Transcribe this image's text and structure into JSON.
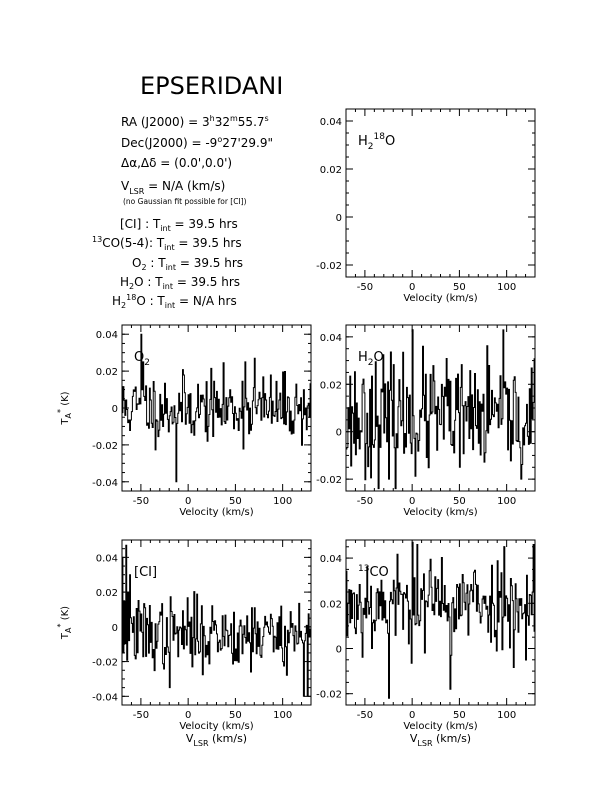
{
  "title": "EPSERIDANI",
  "info": {
    "ra": "RA (J2000) = 3h32m55.7s",
    "dec": "Dec(J2000) = -9°27'29.9\"",
    "offset": "Δα,Δδ = (0.0',0.0')",
    "vlsr": "VLSR = N/A (km/s)",
    "note": "(no Gaussian fit possible for [CI])",
    "tint": [
      {
        "line": "[CI]",
        "value": "39.5 hrs"
      },
      {
        "line": "13CO(5-4)",
        "value": "39.5 hrs"
      },
      {
        "line": "O2",
        "value": "39.5 hrs"
      },
      {
        "line": "H2O",
        "value": "39.5 hrs"
      },
      {
        "line": "H218O",
        "value": "N/A hrs"
      }
    ]
  },
  "chart_data": [
    {
      "type": "line",
      "name": "H2 18O",
      "label": "H218O",
      "xlabel": "Velocity (km/s)",
      "ylabel": "",
      "xlim": [
        -70,
        130
      ],
      "ylim": [
        -0.025,
        0.045
      ],
      "xticks": [
        -50,
        0,
        50,
        100
      ],
      "yticks": [
        -0.02,
        0,
        0.02,
        0.04
      ],
      "ytick_labels": [
        "-0.02",
        "0",
        "0.02",
        "0.04"
      ],
      "data": "none",
      "noise": {
        "sigma": 0,
        "offset": 0,
        "seed": 0
      }
    },
    {
      "type": "line",
      "name": "O2",
      "label": "O2",
      "xlabel": "Velocity (km/s)",
      "ylabel": "TA* (K)",
      "xlim": [
        -70,
        130
      ],
      "ylim": [
        -0.045,
        0.045
      ],
      "xticks": [
        -50,
        0,
        50,
        100
      ],
      "yticks": [
        -0.04,
        -0.02,
        0,
        0.02,
        0.04
      ],
      "ytick_labels": [
        "-0.04",
        "-0.02",
        "0",
        "0.02",
        "0.04"
      ],
      "noise": {
        "sigma": 0.009,
        "offset": 0.0,
        "seed": 11
      },
      "features": [
        {
          "x": -50,
          "y": 0.04
        },
        {
          "x": -48,
          "y": 0.025
        },
        {
          "x": -45,
          "y": 0.012
        },
        {
          "x": -13,
          "y": -0.04
        },
        {
          "x": 60,
          "y": 0.025
        },
        {
          "x": 70,
          "y": 0.027
        }
      ]
    },
    {
      "type": "line",
      "name": "H2O",
      "label": "H2O",
      "xlabel": "Velocity (km/s)",
      "ylabel": "",
      "xlim": [
        -70,
        130
      ],
      "ylim": [
        -0.025,
        0.045
      ],
      "xticks": [
        -50,
        0,
        50,
        100
      ],
      "yticks": [
        -0.02,
        0,
        0.02,
        0.04
      ],
      "ytick_labels": [
        "-0.02",
        "0",
        "0.02",
        "0.04"
      ],
      "noise": {
        "sigma": 0.012,
        "offset": 0.006,
        "seed": 23
      },
      "features": [
        {
          "x": -25,
          "y": -0.02
        },
        {
          "x": 0,
          "y": 0.043
        },
        {
          "x": 50,
          "y": -0.015
        },
        {
          "x": 115,
          "y": -0.02
        },
        {
          "x": 130,
          "y": 0.036
        }
      ]
    },
    {
      "type": "line",
      "name": "CI",
      "label": "[CI]",
      "xlabel": "Velocity (km/s)",
      "xlabel2": "VLSR (km/s)",
      "ylabel": "TA* (K)",
      "xlim": [
        -70,
        130
      ],
      "ylim": [
        -0.045,
        0.05
      ],
      "xticks": [
        -50,
        0,
        50,
        100
      ],
      "yticks": [
        -0.04,
        -0.02,
        0,
        0.02,
        0.04
      ],
      "ytick_labels": [
        "-0.04",
        "-0.02",
        "0",
        "0.02",
        "0.04"
      ],
      "noise": {
        "sigma": 0.01,
        "offset": -0.004,
        "seed": 37
      },
      "features": [
        {
          "x": -70,
          "y": 0.04
        },
        {
          "x": -66,
          "y": 0.047
        },
        {
          "x": -64,
          "y": 0.02
        },
        {
          "x": -62,
          "y": 0.03
        },
        {
          "x": -20,
          "y": -0.035
        },
        {
          "x": 122,
          "y": -0.04
        },
        {
          "x": 126,
          "y": -0.04
        }
      ]
    },
    {
      "type": "line",
      "name": "13CO",
      "label": "13CO",
      "xlabel": "Velocity (km/s)",
      "xlabel2": "VLSR (km/s)",
      "ylabel": "",
      "xlim": [
        -70,
        130
      ],
      "ylim": [
        -0.025,
        0.048
      ],
      "xticks": [
        -50,
        0,
        50,
        100
      ],
      "yticks": [
        -0.02,
        0,
        0.02,
        0.04
      ],
      "ytick_labels": [
        "-0.02",
        "0",
        "0.02",
        "0.04"
      ],
      "noise": {
        "sigma": 0.01,
        "offset": 0.02,
        "seed": 53
      },
      "features": [
        {
          "x": -25,
          "y": -0.022
        },
        {
          "x": 0,
          "y": 0.047
        },
        {
          "x": 5,
          "y": 0.046
        },
        {
          "x": 40,
          "y": -0.018
        },
        {
          "x": 128,
          "y": 0.046
        },
        {
          "x": 130,
          "y": -0.012
        }
      ]
    }
  ]
}
